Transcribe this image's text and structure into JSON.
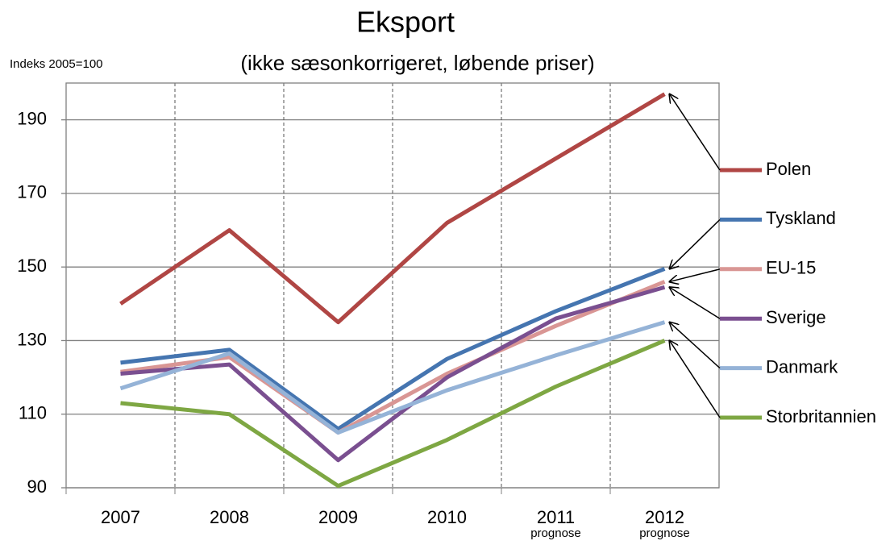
{
  "chart_data": {
    "type": "line",
    "title": "Eksport",
    "subtitle": "(ikke sæsonkorrigeret, løbende priser)",
    "y_label": "Indeks 2005=100",
    "categories": [
      "2007",
      "2008",
      "2009",
      "2010",
      "2011",
      "2012"
    ],
    "category_sublabels": [
      null,
      null,
      null,
      null,
      "prognose",
      "prognose"
    ],
    "ylim": [
      90,
      200
    ],
    "yticks": [
      90,
      110,
      130,
      150,
      170,
      190
    ],
    "grid": true,
    "series": [
      {
        "name": "Polen",
        "color": "#b04644",
        "values": [
          140,
          160,
          135,
          162,
          179.5,
          197
        ]
      },
      {
        "name": "Tyskland",
        "color": "#4575b0",
        "values": [
          124,
          127.5,
          106,
          125,
          138,
          149.5
        ]
      },
      {
        "name": "EU-15",
        "color": "#d99694",
        "values": [
          121.5,
          125.5,
          105,
          121,
          134,
          146
        ]
      },
      {
        "name": "Sverige",
        "color": "#7a4f90",
        "values": [
          121,
          123.5,
          97.5,
          120,
          136,
          144.5
        ]
      },
      {
        "name": "Danmark",
        "color": "#95b3d7",
        "values": [
          117,
          126.5,
          105,
          116.5,
          126,
          135
        ]
      },
      {
        "name": "Storbritannien",
        "color": "#7ea743",
        "values": [
          113,
          110,
          90.5,
          103,
          117.5,
          130
        ]
      }
    ]
  }
}
